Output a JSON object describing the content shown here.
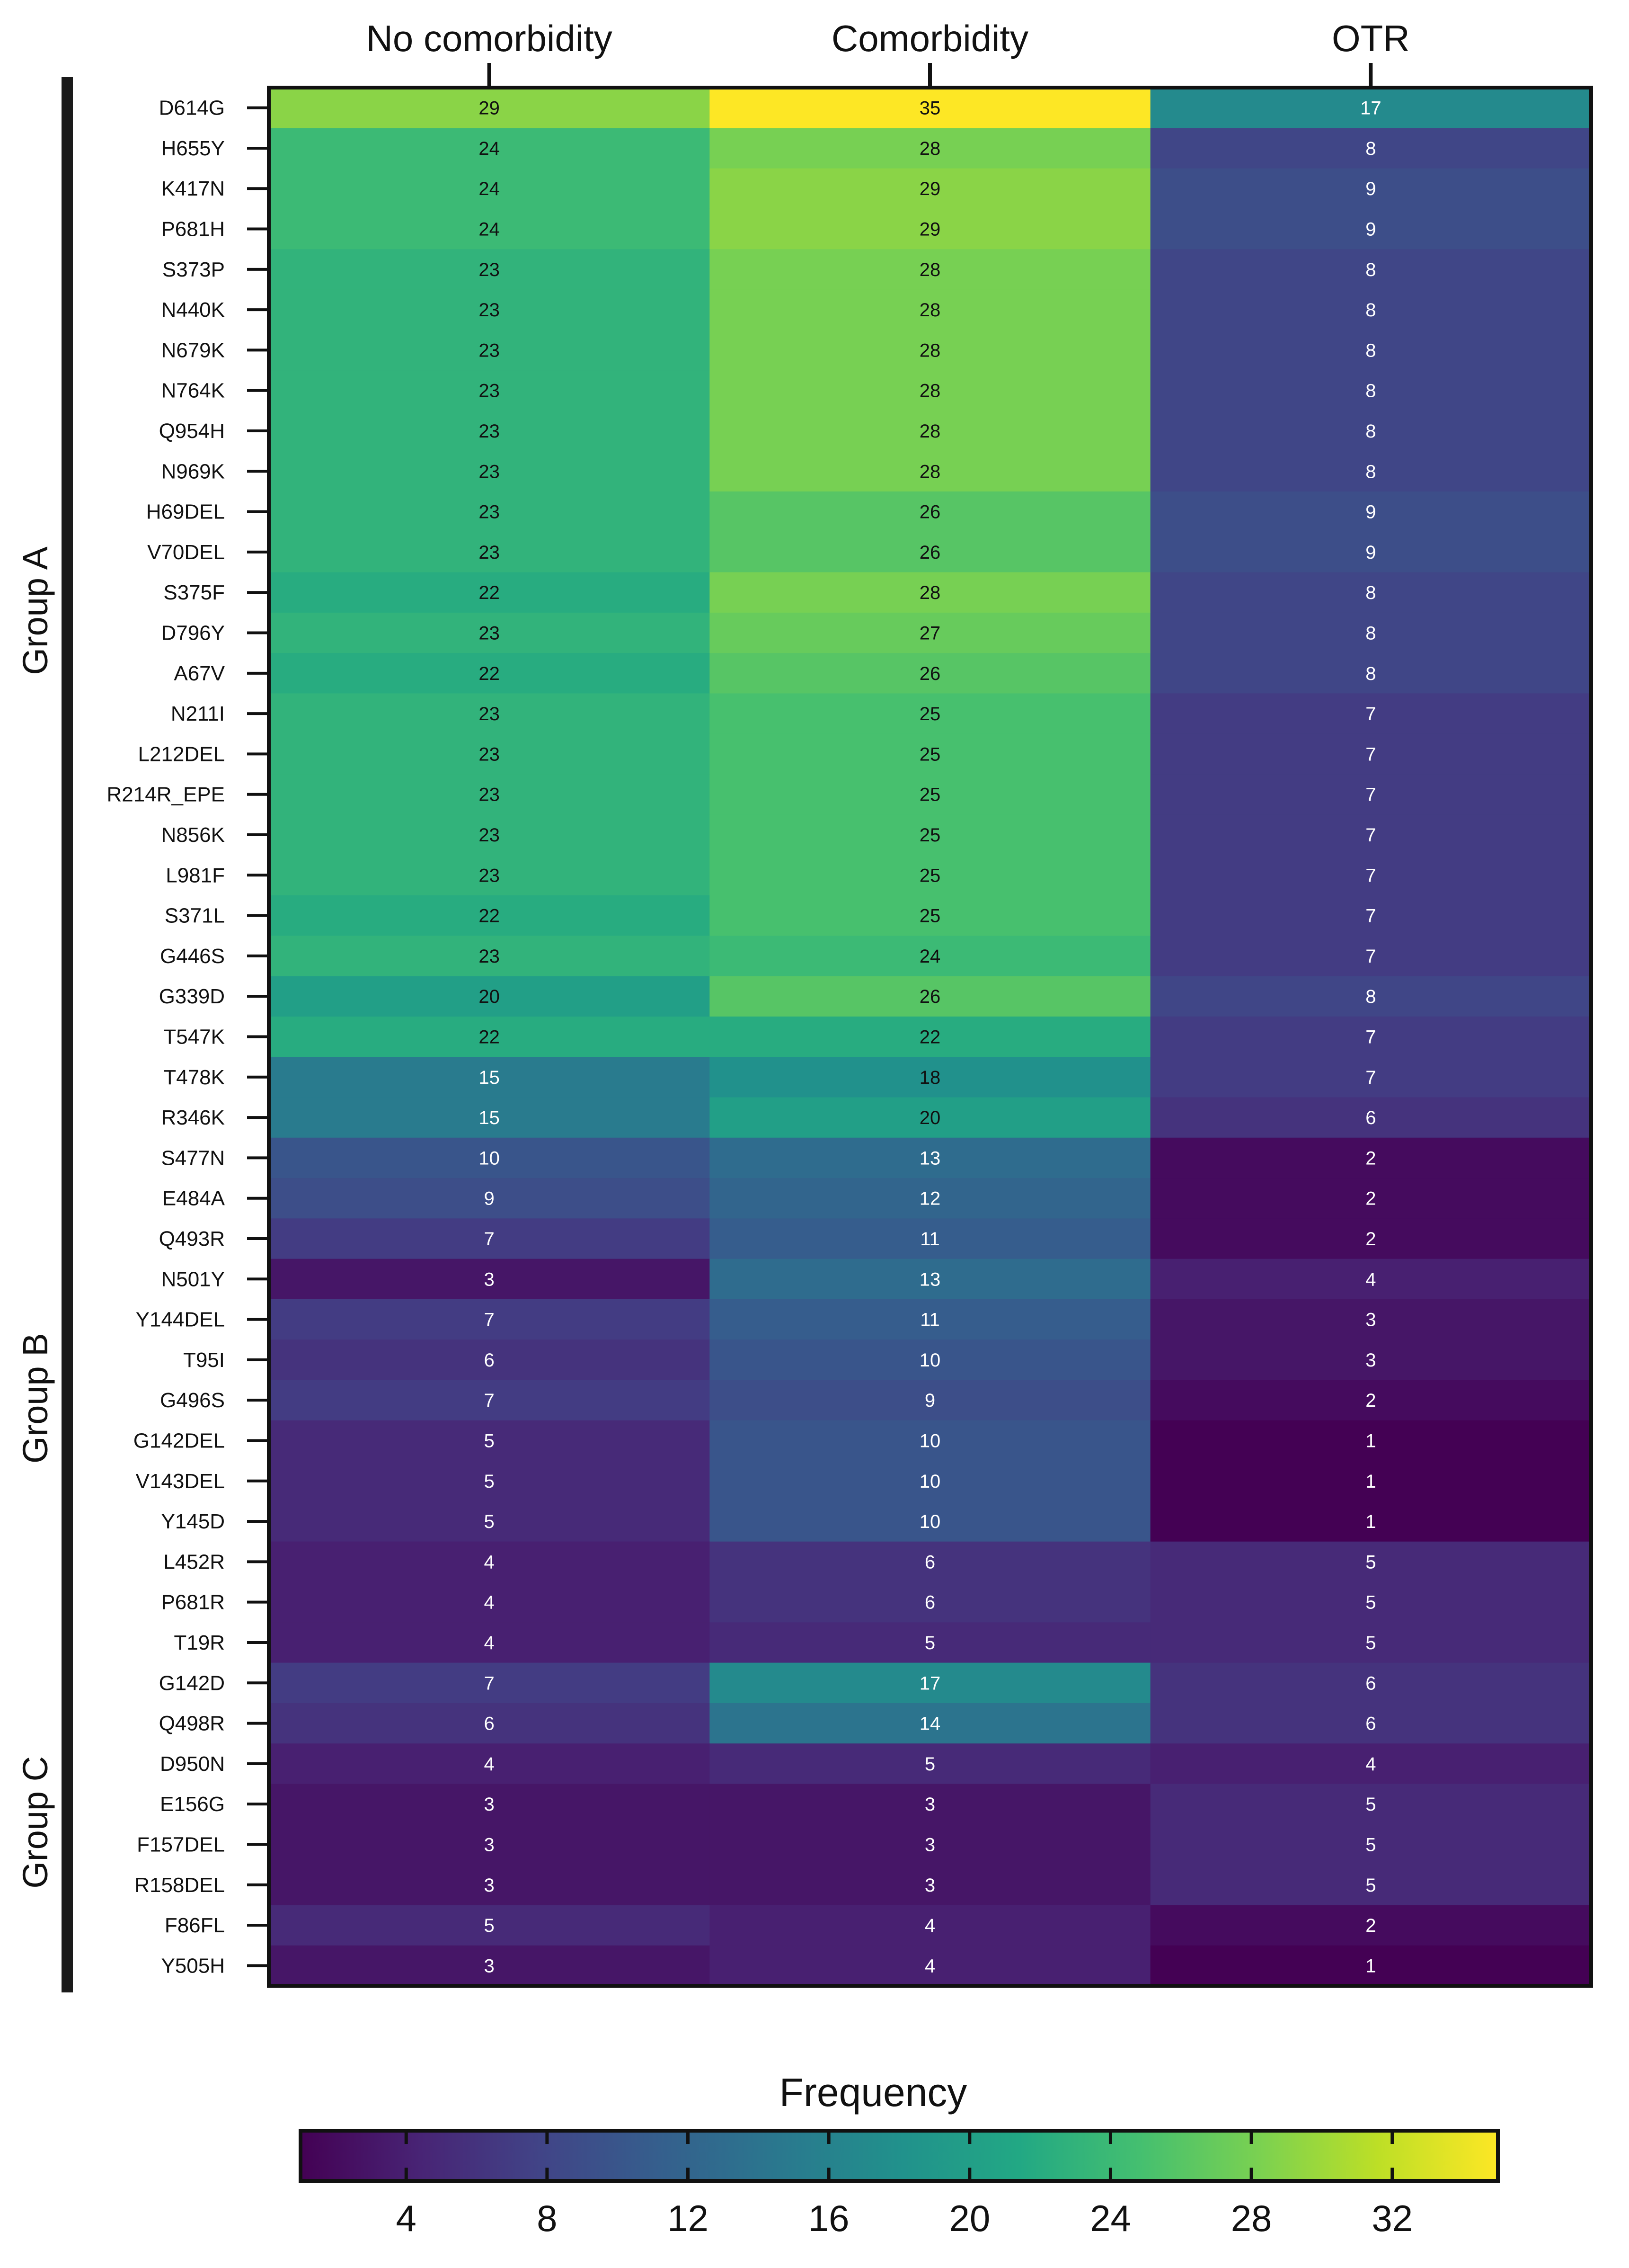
{
  "chart_data": {
    "type": "heatmap",
    "columns": [
      "No comorbidity",
      "Comorbidity",
      "OTR"
    ],
    "rows": [
      "D614G",
      "H655Y",
      "K417N",
      "P681H",
      "S373P",
      "N440K",
      "N679K",
      "N764K",
      "Q954H",
      "N969K",
      "H69DEL",
      "V70DEL",
      "S375F",
      "D796Y",
      "A67V",
      "N211I",
      "L212DEL",
      "R214R_EPE",
      "N856K",
      "L981F",
      "S371L",
      "G446S",
      "G339D",
      "T547K",
      "T478K",
      "R346K",
      "S477N",
      "E484A",
      "Q493R",
      "N501Y",
      "Y144DEL",
      "T95I",
      "G496S",
      "G142DEL",
      "V143DEL",
      "Y145D",
      "L452R",
      "P681R",
      "T19R",
      "G142D",
      "Q498R",
      "D950N",
      "E156G",
      "F157DEL",
      "R158DEL",
      "F86FL",
      "Y505H"
    ],
    "values": [
      [
        29,
        35,
        17
      ],
      [
        24,
        28,
        8
      ],
      [
        24,
        29,
        9
      ],
      [
        24,
        29,
        9
      ],
      [
        23,
        28,
        8
      ],
      [
        23,
        28,
        8
      ],
      [
        23,
        28,
        8
      ],
      [
        23,
        28,
        8
      ],
      [
        23,
        28,
        8
      ],
      [
        23,
        28,
        8
      ],
      [
        23,
        26,
        9
      ],
      [
        23,
        26,
        9
      ],
      [
        22,
        28,
        8
      ],
      [
        23,
        27,
        8
      ],
      [
        22,
        26,
        8
      ],
      [
        23,
        25,
        7
      ],
      [
        23,
        25,
        7
      ],
      [
        23,
        25,
        7
      ],
      [
        23,
        25,
        7
      ],
      [
        23,
        25,
        7
      ],
      [
        22,
        25,
        7
      ],
      [
        23,
        24,
        7
      ],
      [
        20,
        26,
        8
      ],
      [
        22,
        22,
        7
      ],
      [
        15,
        18,
        7
      ],
      [
        15,
        20,
        6
      ],
      [
        10,
        13,
        2
      ],
      [
        9,
        12,
        2
      ],
      [
        7,
        11,
        2
      ],
      [
        3,
        13,
        4
      ],
      [
        7,
        11,
        3
      ],
      [
        6,
        10,
        3
      ],
      [
        7,
        9,
        2
      ],
      [
        5,
        10,
        1
      ],
      [
        5,
        10,
        1
      ],
      [
        5,
        10,
        1
      ],
      [
        4,
        6,
        5
      ],
      [
        4,
        6,
        5
      ],
      [
        4,
        5,
        5
      ],
      [
        7,
        17,
        6
      ],
      [
        6,
        14,
        6
      ],
      [
        4,
        5,
        4
      ],
      [
        3,
        3,
        5
      ],
      [
        3,
        3,
        5
      ],
      [
        3,
        3,
        5
      ],
      [
        5,
        4,
        2
      ],
      [
        3,
        4,
        1
      ]
    ],
    "groups": [
      {
        "label": "Group A",
        "start": 0,
        "end": 25
      },
      {
        "label": "Group B",
        "start": 26,
        "end": 38
      },
      {
        "label": "Group C",
        "start": 39,
        "end": 46
      }
    ],
    "colorbar": {
      "title": "Frequency",
      "range": [
        1,
        35
      ],
      "ticks": [
        4,
        8,
        12,
        16,
        20,
        24,
        28,
        32
      ]
    },
    "colormap": "viridis"
  }
}
